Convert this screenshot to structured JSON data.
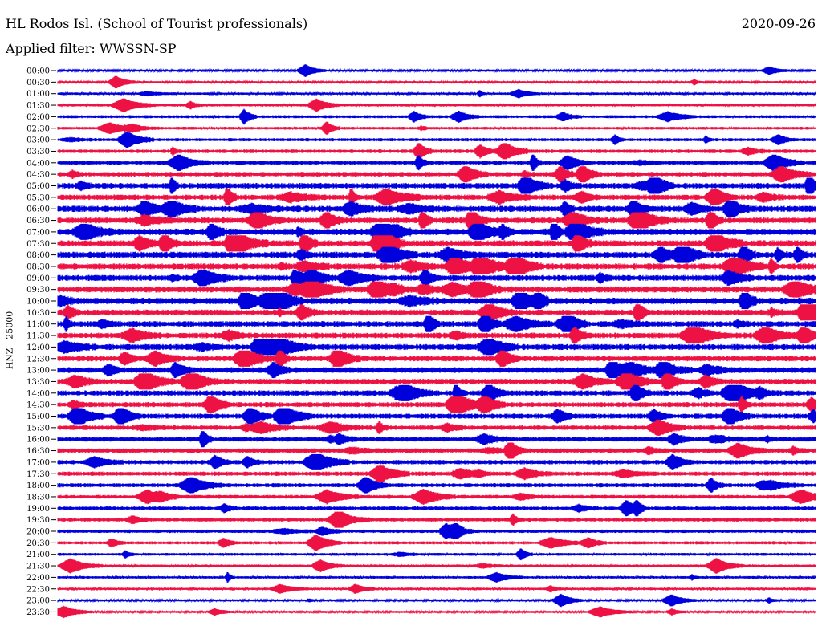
{
  "header": {
    "station": "HL Rodos Isl. (School of Tourist professionals)",
    "date": "2020-09-26",
    "filter": "Applied filter: WWSSN-SP"
  },
  "channel_label": "HNZ - 25000",
  "trace_colors": [
    "#0000dd",
    "#ee1144"
  ],
  "traces": {
    "times": [
      "00:00",
      "00:30",
      "01:00",
      "01:30",
      "02:00",
      "02:30",
      "03:00",
      "03:30",
      "04:00",
      "04:30",
      "05:00",
      "05:30",
      "06:00",
      "06:30",
      "07:00",
      "07:30",
      "08:00",
      "08:30",
      "09:00",
      "09:30",
      "10:00",
      "10:30",
      "11:00",
      "11:30",
      "12:00",
      "12:30",
      "13:00",
      "13:30",
      "14:00",
      "14:30",
      "15:00",
      "15:30",
      "16:00",
      "16:30",
      "17:00",
      "17:30",
      "18:00",
      "18:30",
      "19:00",
      "19:30",
      "20:00",
      "20:30",
      "21:00",
      "21:30",
      "22:00",
      "22:30",
      "23:00",
      "23:30"
    ],
    "activity": [
      0.12,
      0.14,
      0.18,
      0.22,
      0.28,
      0.25,
      0.32,
      0.4,
      0.45,
      0.55,
      0.7,
      0.65,
      0.8,
      0.75,
      0.85,
      0.8,
      0.82,
      0.78,
      0.75,
      0.8,
      0.85,
      0.75,
      0.72,
      0.7,
      0.75,
      0.7,
      0.72,
      0.7,
      0.68,
      0.6,
      0.62,
      0.55,
      0.58,
      0.55,
      0.5,
      0.48,
      0.45,
      0.42,
      0.4,
      0.38,
      0.35,
      0.3,
      0.25,
      0.25,
      0.2,
      0.18,
      0.15,
      0.14
    ]
  }
}
